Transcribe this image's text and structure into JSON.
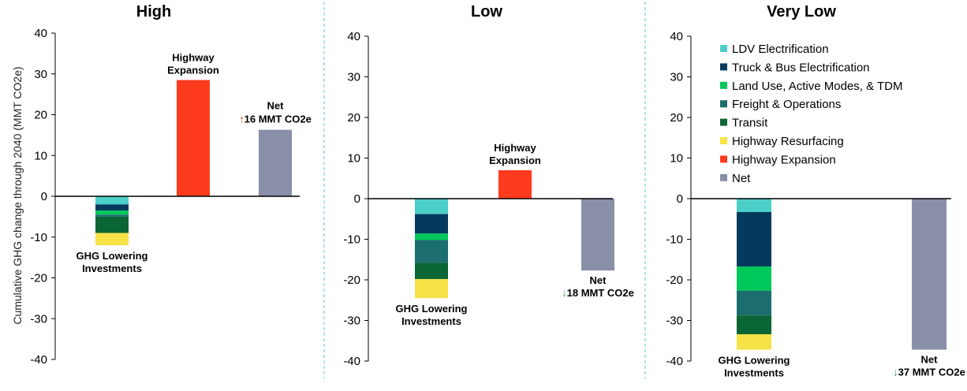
{
  "colors": {
    "ldv": "#4ccfc9",
    "truck": "#053a5f",
    "landuse": "#00c85a",
    "freight": "#1c6e6e",
    "transit": "#0a6634",
    "resurfacing": "#f7e247",
    "highway": "#ff3b1e",
    "net": "#8a8fa8",
    "up_arrow": "#e8401c",
    "down_arrow": "#20b24a",
    "divider": "#5cc7c7"
  },
  "y_axis_label": "Cumulative GHG change through 2040 (MMT CO2e)",
  "legend": [
    {
      "label": "LDV Electrification",
      "color": "#4ccfc9"
    },
    {
      "label": "Truck & Bus Electrification",
      "color": "#053a5f"
    },
    {
      "label": "Land Use, Active Modes, & TDM",
      "color": "#00c85a"
    },
    {
      "label": "Freight & Operations",
      "color": "#1c6e6e"
    },
    {
      "label": "Transit",
      "color": "#0a6634"
    },
    {
      "label": "Highway Resurfacing",
      "color": "#f7e247"
    },
    {
      "label": "Highway Expansion",
      "color": "#ff3b1e"
    },
    {
      "label": "Net",
      "color": "#8a8fa8"
    }
  ],
  "chart_data": [
    {
      "type": "bar",
      "title": "High",
      "ylim": [
        -40,
        40
      ],
      "yticks": [
        40,
        30,
        20,
        10,
        0,
        -10,
        -20,
        -30,
        -40
      ],
      "ghg_label": [
        "GHG Lowering",
        "Investments"
      ],
      "highway_label": [
        "Highway",
        "Expansion"
      ],
      "net_label": "Net",
      "net_change_text": "16 MMT CO2e",
      "net_direction": "up",
      "ghg_lowering_stack": [
        {
          "name": "LDV Electrification",
          "value": -2.0
        },
        {
          "name": "Truck & Bus Electrification",
          "value": -1.5
        },
        {
          "name": "Land Use, Active Modes, & TDM",
          "value": -1.0
        },
        {
          "name": "Freight & Operations",
          "value": -0.5
        },
        {
          "name": "Transit",
          "value": -4.0
        },
        {
          "name": "Highway Resurfacing",
          "value": -3.0
        }
      ],
      "highway_expansion": 28.5,
      "net": 16.3
    },
    {
      "type": "bar",
      "title": "Low",
      "ylim": [
        -40,
        40
      ],
      "yticks": [
        40,
        30,
        20,
        10,
        0,
        -10,
        -20,
        -30,
        -40
      ],
      "ghg_label": [
        "GHG Lowering",
        "Investments"
      ],
      "highway_label": [
        "Highway",
        "Expansion"
      ],
      "net_label": "Net",
      "net_change_text": "18 MMT CO2e",
      "net_direction": "down",
      "ghg_lowering_stack": [
        {
          "name": "LDV Electrification",
          "value": -3.8
        },
        {
          "name": "Truck & Bus Electrification",
          "value": -4.8
        },
        {
          "name": "Land Use, Active Modes, & TDM",
          "value": -1.6
        },
        {
          "name": "Freight & Operations",
          "value": -5.6
        },
        {
          "name": "Transit",
          "value": -4.0
        },
        {
          "name": "Highway Resurfacing",
          "value": -4.7
        }
      ],
      "highway_expansion": 7.0,
      "net": -17.7
    },
    {
      "type": "bar",
      "title": "Very Low",
      "ylim": [
        -40,
        40
      ],
      "yticks": [
        40,
        30,
        20,
        10,
        0,
        -10,
        -20,
        -30,
        -40
      ],
      "ghg_label": [
        "GHG Lowering",
        "Investments"
      ],
      "highway_label": [],
      "net_label": "Net",
      "net_change_text": "37 MMT CO2e",
      "net_direction": "down",
      "ghg_lowering_stack": [
        {
          "name": "LDV Electrification",
          "value": -3.3
        },
        {
          "name": "Truck & Bus Electrification",
          "value": -13.4
        },
        {
          "name": "Land Use, Active Modes, & TDM",
          "value": -6.0
        },
        {
          "name": "Freight & Operations",
          "value": -6.1
        },
        {
          "name": "Transit",
          "value": -4.6
        },
        {
          "name": "Highway Resurfacing",
          "value": -3.8
        }
      ],
      "highway_expansion": 0,
      "net": -37.2
    }
  ]
}
